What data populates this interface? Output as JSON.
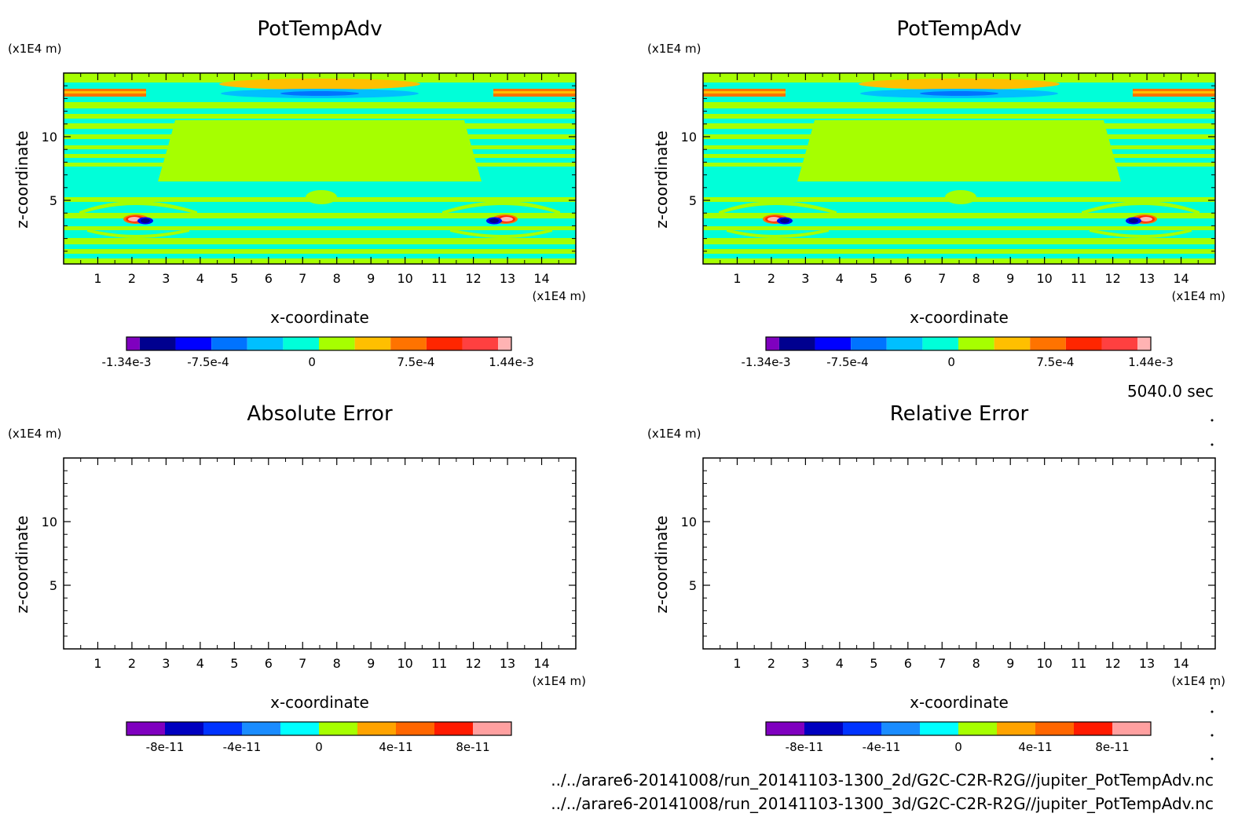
{
  "time_label": "5040.0 sec",
  "files": [
    "../../arare6-20141008/run_20141103-1300_2d/G2C-C2R-R2G//jupiter_PotTempAdv.nc",
    "../../arare6-20141008/run_20141103-1300_3d/G2C-C2R-R2G//jupiter_PotTempAdv.nc"
  ],
  "colors": {
    "field": [
      "#7f00bf",
      "#00008f",
      "#0000ff",
      "#0073ff",
      "#00bfff",
      "#00ffd9",
      "#a6ff00",
      "#ffbf00",
      "#ff7300",
      "#ff2600",
      "#ff4040",
      "#ffb3b3"
    ],
    "error": [
      "#7f00bf",
      "#0000bf",
      "#0033ff",
      "#1a8cff",
      "#00ffff",
      "#a6ff00",
      "#ffa300",
      "#ff6600",
      "#ff1a00",
      "#ffa0a0"
    ]
  },
  "chart_data": [
    {
      "type": "heatmap",
      "title": "PotTempAdv",
      "xlabel": "x-coordinate",
      "ylabel": "z-coordinate",
      "x_unit": "(x1E4 m)",
      "y_unit": "(x1E4 m)",
      "xlim": [
        0,
        15
      ],
      "ylim": [
        0,
        15
      ],
      "x_ticks": [
        "1",
        "2",
        "3",
        "4",
        "5",
        "6",
        "7",
        "8",
        "9",
        "10",
        "11",
        "12",
        "13",
        "14"
      ],
      "y_ticks": [
        "5",
        "10"
      ],
      "colorbar": {
        "min": -0.00134,
        "max": 0.00144,
        "tick_labels": [
          "-1.34e-3",
          "-7.5e-4",
          "0",
          "7.5e-4",
          "1.44e-3"
        ]
      },
      "field": "filled"
    },
    {
      "type": "heatmap",
      "title": "PotTempAdv",
      "xlabel": "x-coordinate",
      "ylabel": "z-coordinate",
      "x_unit": "(x1E4 m)",
      "y_unit": "(x1E4 m)",
      "xlim": [
        0,
        15
      ],
      "ylim": [
        0,
        15
      ],
      "x_ticks": [
        "1",
        "2",
        "3",
        "4",
        "5",
        "6",
        "7",
        "8",
        "9",
        "10",
        "11",
        "12",
        "13",
        "14"
      ],
      "y_ticks": [
        "5",
        "10"
      ],
      "colorbar": {
        "min": -0.00134,
        "max": 0.00144,
        "tick_labels": [
          "-1.34e-3",
          "-7.5e-4",
          "0",
          "7.5e-4",
          "1.44e-3"
        ]
      },
      "field": "filled"
    },
    {
      "type": "heatmap",
      "title": "Absolute Error",
      "xlabel": "x-coordinate",
      "ylabel": "z-coordinate",
      "x_unit": "(x1E4 m)",
      "y_unit": "(x1E4 m)",
      "xlim": [
        0,
        15
      ],
      "ylim": [
        0,
        15
      ],
      "x_ticks": [
        "1",
        "2",
        "3",
        "4",
        "5",
        "6",
        "7",
        "8",
        "9",
        "10",
        "11",
        "12",
        "13",
        "14"
      ],
      "y_ticks": [
        "5",
        "10"
      ],
      "colorbar": {
        "min": -1e-10,
        "max": 1e-10,
        "tick_labels": [
          "-8e-11",
          "-4e-11",
          "0",
          "4e-11",
          "8e-11"
        ]
      },
      "field": "empty"
    },
    {
      "type": "heatmap",
      "title": "Relative Error",
      "xlabel": "x-coordinate",
      "ylabel": "z-coordinate",
      "x_unit": "(x1E4 m)",
      "y_unit": "(x1E4 m)",
      "xlim": [
        0,
        15
      ],
      "ylim": [
        0,
        15
      ],
      "x_ticks": [
        "1",
        "2",
        "3",
        "4",
        "5",
        "6",
        "7",
        "8",
        "9",
        "10",
        "11",
        "12",
        "13",
        "14"
      ],
      "y_ticks": [
        "5",
        "10"
      ],
      "colorbar": {
        "min": -1e-10,
        "max": 1e-10,
        "tick_labels": [
          "-8e-11",
          "-4e-11",
          "0",
          "4e-11",
          "8e-11"
        ]
      },
      "field": "empty"
    }
  ]
}
